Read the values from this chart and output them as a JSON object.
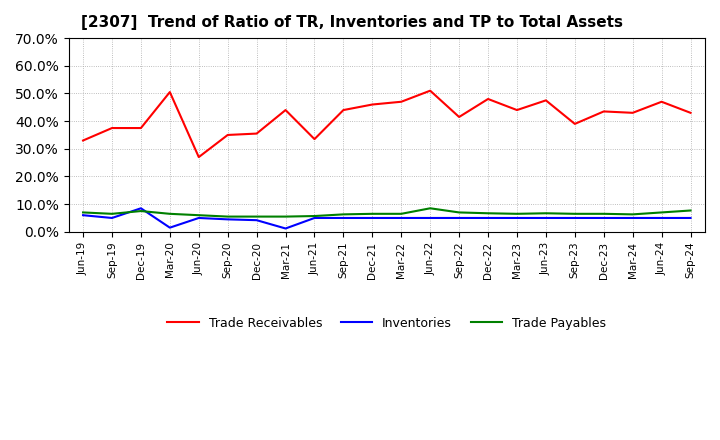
{
  "title": "[2307]  Trend of Ratio of TR, Inventories and TP to Total Assets",
  "x_labels": [
    "Jun-19",
    "Sep-19",
    "Dec-19",
    "Mar-20",
    "Jun-20",
    "Sep-20",
    "Dec-20",
    "Mar-21",
    "Jun-21",
    "Sep-21",
    "Dec-21",
    "Mar-22",
    "Jun-22",
    "Sep-22",
    "Dec-22",
    "Mar-23",
    "Jun-23",
    "Sep-23",
    "Dec-23",
    "Mar-24",
    "Jun-24",
    "Sep-24"
  ],
  "trade_receivables": [
    0.33,
    0.375,
    0.375,
    0.505,
    0.27,
    0.35,
    0.355,
    0.44,
    0.335,
    0.44,
    0.46,
    0.47,
    0.51,
    0.415,
    0.48,
    0.44,
    0.475,
    0.39,
    0.435,
    0.43,
    0.47,
    0.43
  ],
  "inventories": [
    0.06,
    0.05,
    0.085,
    0.015,
    0.05,
    0.045,
    0.042,
    0.012,
    0.05,
    0.05,
    0.05,
    0.05,
    0.05,
    0.05,
    0.05,
    0.05,
    0.05,
    0.05,
    0.05,
    0.05,
    0.05,
    0.05
  ],
  "trade_payables": [
    0.07,
    0.065,
    0.075,
    0.065,
    0.06,
    0.055,
    0.055,
    0.055,
    0.057,
    0.063,
    0.065,
    0.065,
    0.085,
    0.07,
    0.067,
    0.065,
    0.067,
    0.065,
    0.065,
    0.063,
    0.07,
    0.077
  ],
  "tr_color": "#ff0000",
  "inv_color": "#0000ff",
  "tp_color": "#008000",
  "ylim": [
    0.0,
    0.7
  ],
  "yticks": [
    0.0,
    0.1,
    0.2,
    0.3,
    0.4,
    0.5,
    0.6,
    0.7
  ],
  "legend_labels": [
    "Trade Receivables",
    "Inventories",
    "Trade Payables"
  ],
  "bg_color": "#ffffff",
  "grid_color": "#aaaaaa"
}
